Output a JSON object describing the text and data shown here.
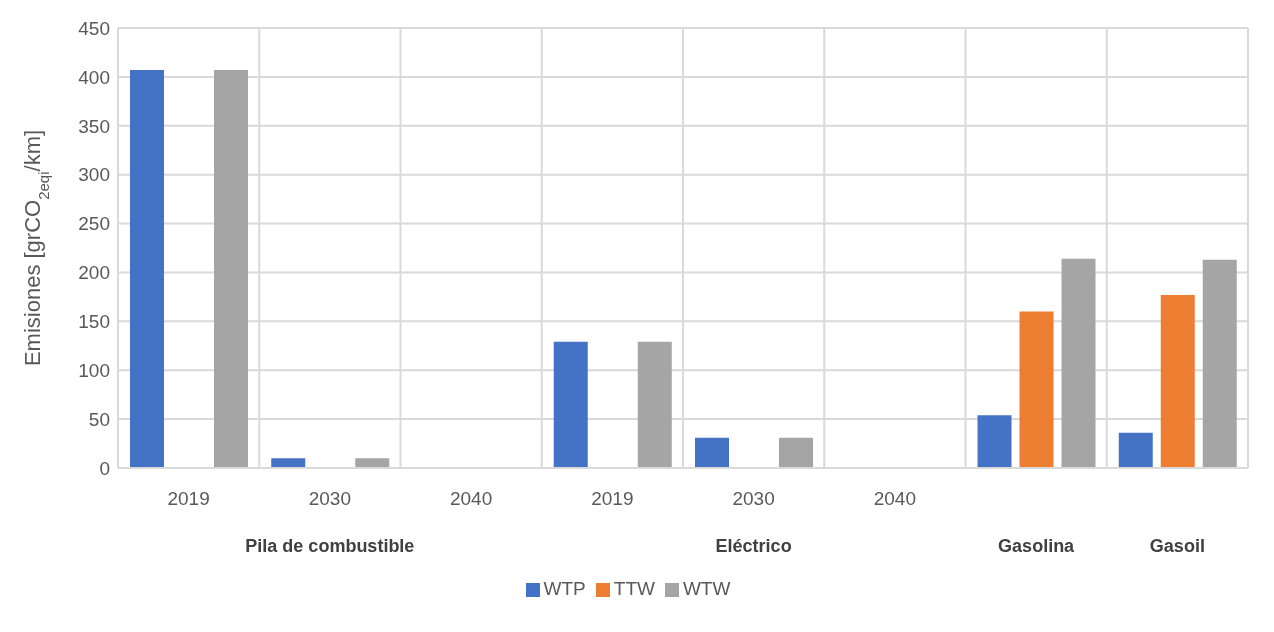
{
  "chart_data": {
    "type": "bar",
    "ylabel": "Emisiones [grCO$_{2eqi}$/km]",
    "categories": [
      "2019",
      "2030",
      "2040",
      "2019",
      "2030",
      "2040",
      null,
      null
    ],
    "annotations": [
      "Pila de combustible",
      "Eléctrico",
      "Gasolina",
      "Gasoil"
    ],
    "series": [
      {
        "name": "WTP",
        "color": "#4472c4",
        "values": [
          407,
          10,
          0,
          129,
          31,
          0,
          54,
          36
        ]
      },
      {
        "name": "TTW",
        "color": "#ed7d31",
        "values": [
          0,
          0,
          0,
          0,
          0,
          0,
          160,
          177
        ]
      },
      {
        "name": "WTW",
        "color": "#a5a5a5",
        "values": [
          407,
          10,
          0,
          129,
          31,
          0,
          214,
          213
        ]
      }
    ],
    "ylim": [
      0,
      450
    ],
    "yticks": [
      0,
      50,
      100,
      150,
      200,
      250,
      300,
      350,
      400,
      450
    ],
    "grid": true,
    "legend": "bottom"
  }
}
